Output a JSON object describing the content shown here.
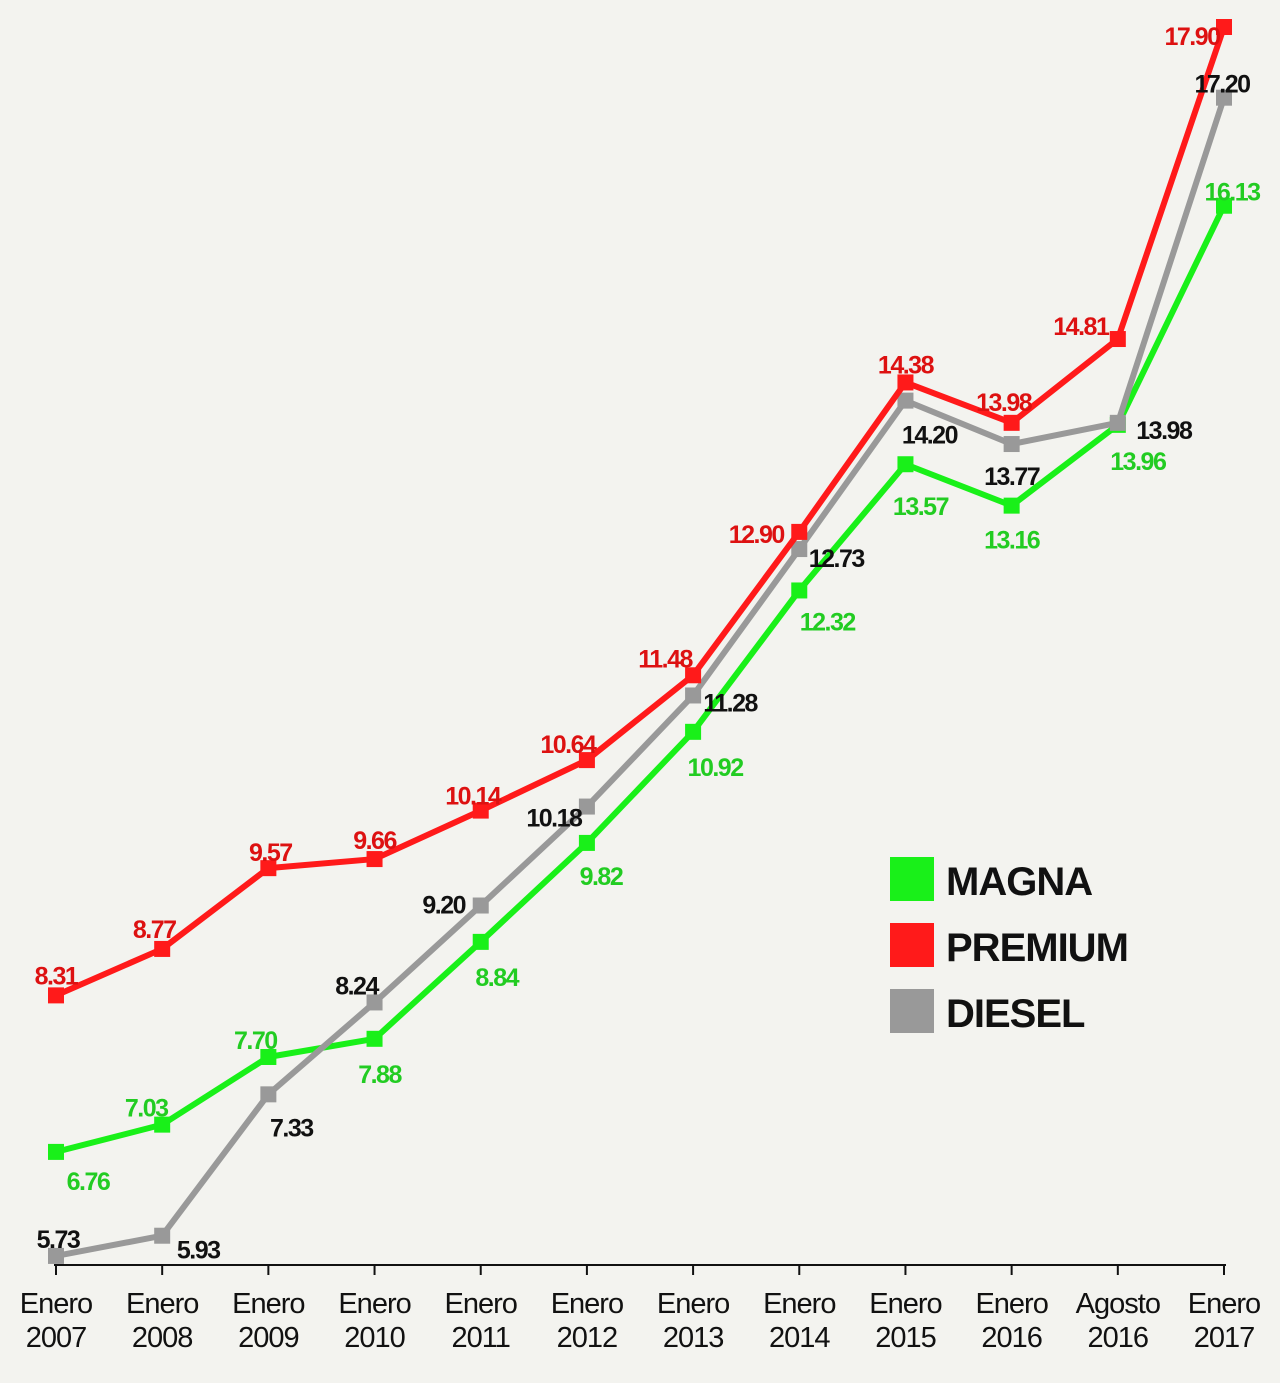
{
  "chart_data": {
    "type": "line",
    "title": "",
    "xlabel": "",
    "ylabel": "",
    "categories": [
      [
        "Enero",
        "2007"
      ],
      [
        "Enero",
        "2008"
      ],
      [
        "Enero",
        "2009"
      ],
      [
        "Enero",
        "2010"
      ],
      [
        "Enero",
        "2011"
      ],
      [
        "Enero",
        "2012"
      ],
      [
        "Enero",
        "2013"
      ],
      [
        "Enero",
        "2014"
      ],
      [
        "Enero",
        "2015"
      ],
      [
        "Enero",
        "2016"
      ],
      [
        "Agosto",
        "2016"
      ],
      [
        "Enero",
        "2017"
      ]
    ],
    "ylim": [
      5.64,
      17.9
    ],
    "grid": false,
    "legend_position": "right",
    "series": [
      {
        "name": "MAGNA",
        "color": "#19f019",
        "label_color": "#22cc22",
        "values": [
          6.76,
          7.03,
          7.7,
          7.88,
          8.84,
          9.82,
          10.92,
          12.32,
          13.57,
          13.16,
          13.96,
          16.13
        ],
        "labels": [
          "6.76",
          "7.03",
          "7.70",
          "7.88",
          "8.84",
          "9.82",
          "10.92",
          "12.32",
          "13.57",
          "13.16",
          "13.96",
          "16.13"
        ]
      },
      {
        "name": "PREMIUM",
        "color": "#ff1a1a",
        "label_color": "#dd1111",
        "values": [
          8.31,
          8.77,
          9.57,
          9.66,
          10.14,
          10.64,
          11.48,
          12.9,
          14.38,
          13.98,
          14.81,
          17.9
        ],
        "labels": [
          "8.31",
          "8.77",
          "9.57",
          "9.66",
          "10.14",
          "10.64",
          "11.48",
          "12.90",
          "14.38",
          "13.98",
          "14.81",
          "17.90"
        ]
      },
      {
        "name": "DIESEL",
        "color": "#999999",
        "label_color": "#111111",
        "values": [
          5.73,
          5.93,
          7.33,
          8.24,
          9.2,
          10.18,
          11.28,
          12.73,
          14.2,
          13.77,
          13.98,
          17.2
        ],
        "labels": [
          "5.73",
          "5.93",
          "7.33",
          "8.24",
          "9.20",
          "10.18",
          "11.28",
          "12.73",
          "14.20",
          "13.77",
          "13.98",
          "17.20"
        ]
      }
    ]
  }
}
